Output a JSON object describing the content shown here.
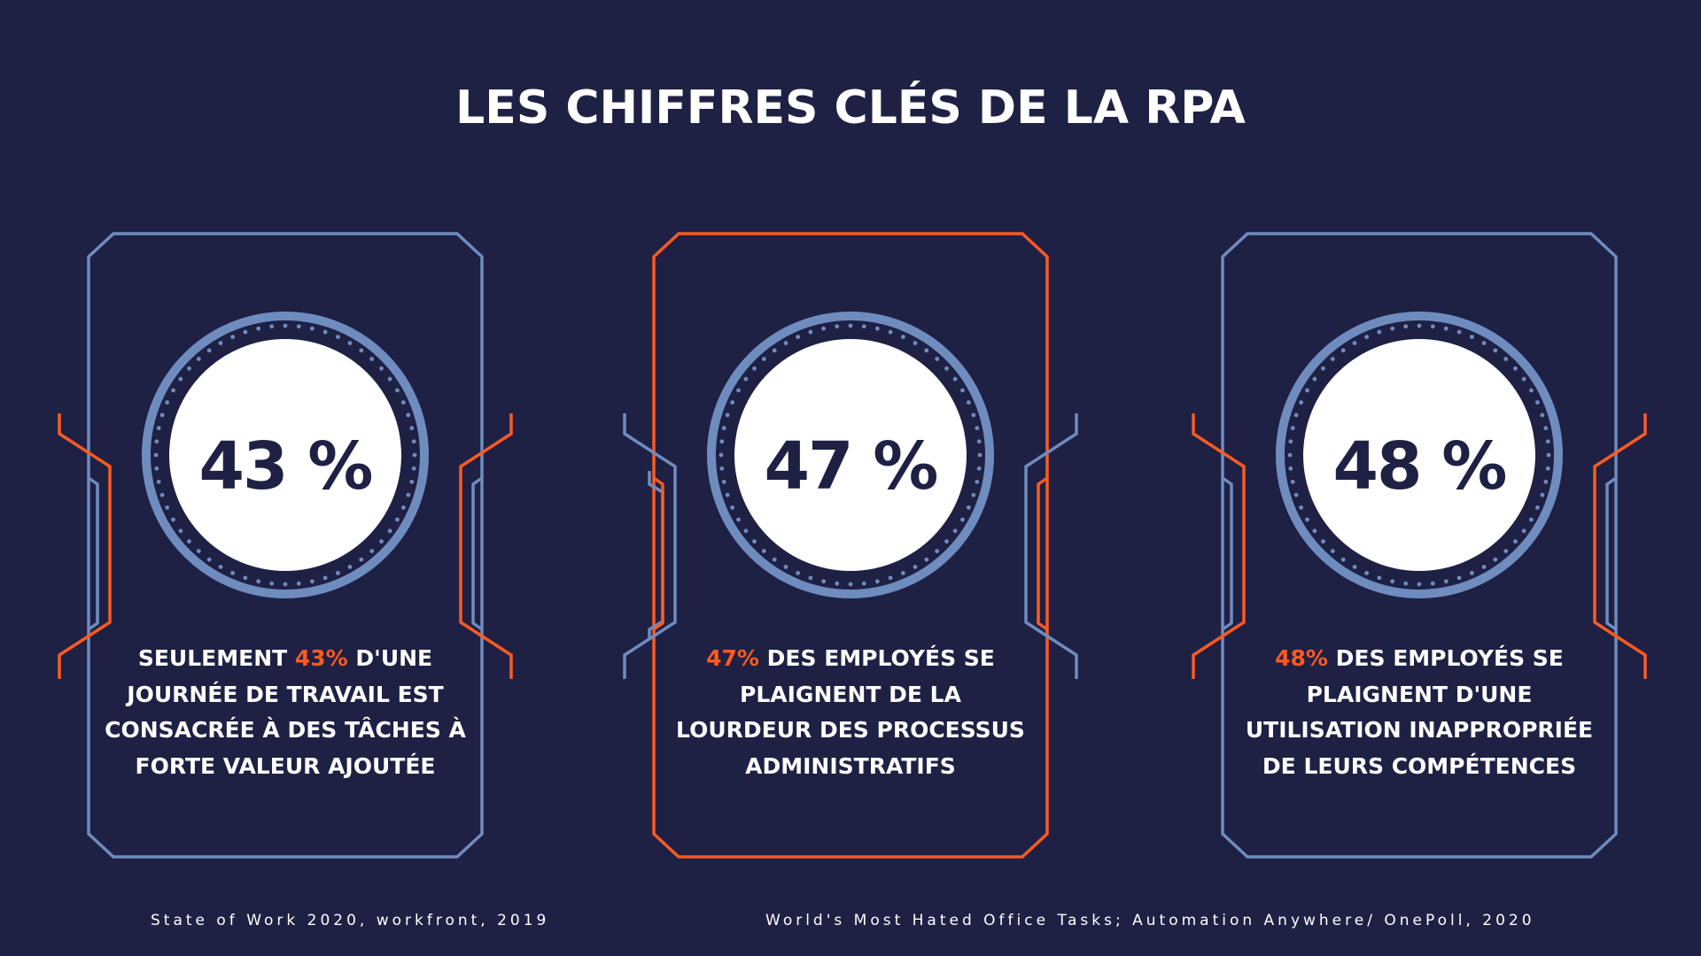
{
  "title": "LES CHIFFRES CLÉS DE LA RPA",
  "colors": {
    "background": "#1e2044",
    "blue": "#6f8cbf",
    "orange": "#fa5a22",
    "text": "#ffffff"
  },
  "cards": [
    {
      "value": "43 %",
      "frame": "blue",
      "desc_before": "Seulement ",
      "desc_highlight": "43%",
      "desc_after": " d'une journée de travail est consacrée à des tâches à forte valeur ajoutée"
    },
    {
      "value": "47 %",
      "frame": "orange",
      "desc_before": "",
      "desc_highlight": "47%",
      "desc_after": " des employés se plaignent de la lourdeur des processus administratifs"
    },
    {
      "value": "48 %",
      "frame": "blue",
      "desc_before": "",
      "desc_highlight": "48%",
      "desc_after": " des employés se plaignent d'une utilisation inappropriée de leurs compétences"
    }
  ],
  "sources": [
    "State of Work 2020, workfront, 2019",
    "World's Most Hated Office Tasks; Automation Anywhere/ OnePoll, 2020"
  ]
}
